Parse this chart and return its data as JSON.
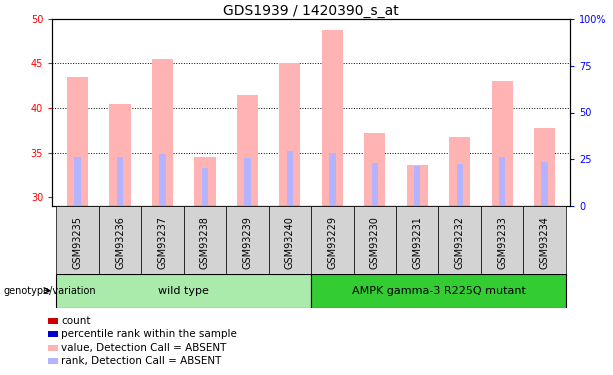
{
  "title": "GDS1939 / 1420390_s_at",
  "samples": [
    "GSM93235",
    "GSM93236",
    "GSM93237",
    "GSM93238",
    "GSM93239",
    "GSM93240",
    "GSM93229",
    "GSM93230",
    "GSM93231",
    "GSM93232",
    "GSM93233",
    "GSM93234"
  ],
  "values": [
    43.5,
    40.5,
    45.5,
    34.5,
    41.5,
    45.0,
    48.7,
    37.2,
    33.6,
    36.8,
    43.0,
    37.8
  ],
  "ranks": [
    34.5,
    34.5,
    34.8,
    33.3,
    34.4,
    35.2,
    35.0,
    33.8,
    33.5,
    33.7,
    34.5,
    34.0
  ],
  "ylim_left": [
    29,
    50
  ],
  "ylim_right": [
    0,
    100
  ],
  "yticks_left": [
    30,
    35,
    40,
    45,
    50
  ],
  "yticks_right": [
    0,
    25,
    50,
    75,
    100
  ],
  "ytick_labels_right": [
    "0",
    "25",
    "50",
    "75",
    "100%"
  ],
  "bar_color": "#ffb3b3",
  "rank_color": "#b3b3ff",
  "group1_label": "wild type",
  "group2_label": "AMPK gamma-3 R225Q mutant",
  "group1_indices": [
    0,
    1,
    2,
    3,
    4,
    5
  ],
  "group2_indices": [
    6,
    7,
    8,
    9,
    10,
    11
  ],
  "group1_bg": "#aaeaaa",
  "group2_bg": "#33cc33",
  "genotype_label": "genotype/variation",
  "legend_items": [
    {
      "label": "count",
      "color": "#cc0000"
    },
    {
      "label": "percentile rank within the sample",
      "color": "#0000cc"
    },
    {
      "label": "value, Detection Call = ABSENT",
      "color": "#ffb3b3"
    },
    {
      "label": "rank, Detection Call = ABSENT",
      "color": "#b3b3ff"
    }
  ],
  "bar_width": 0.5,
  "rank_bar_width": 0.15,
  "title_fontsize": 10,
  "tick_fontsize": 7,
  "label_fontsize": 7.5,
  "bar_bottom": 29
}
